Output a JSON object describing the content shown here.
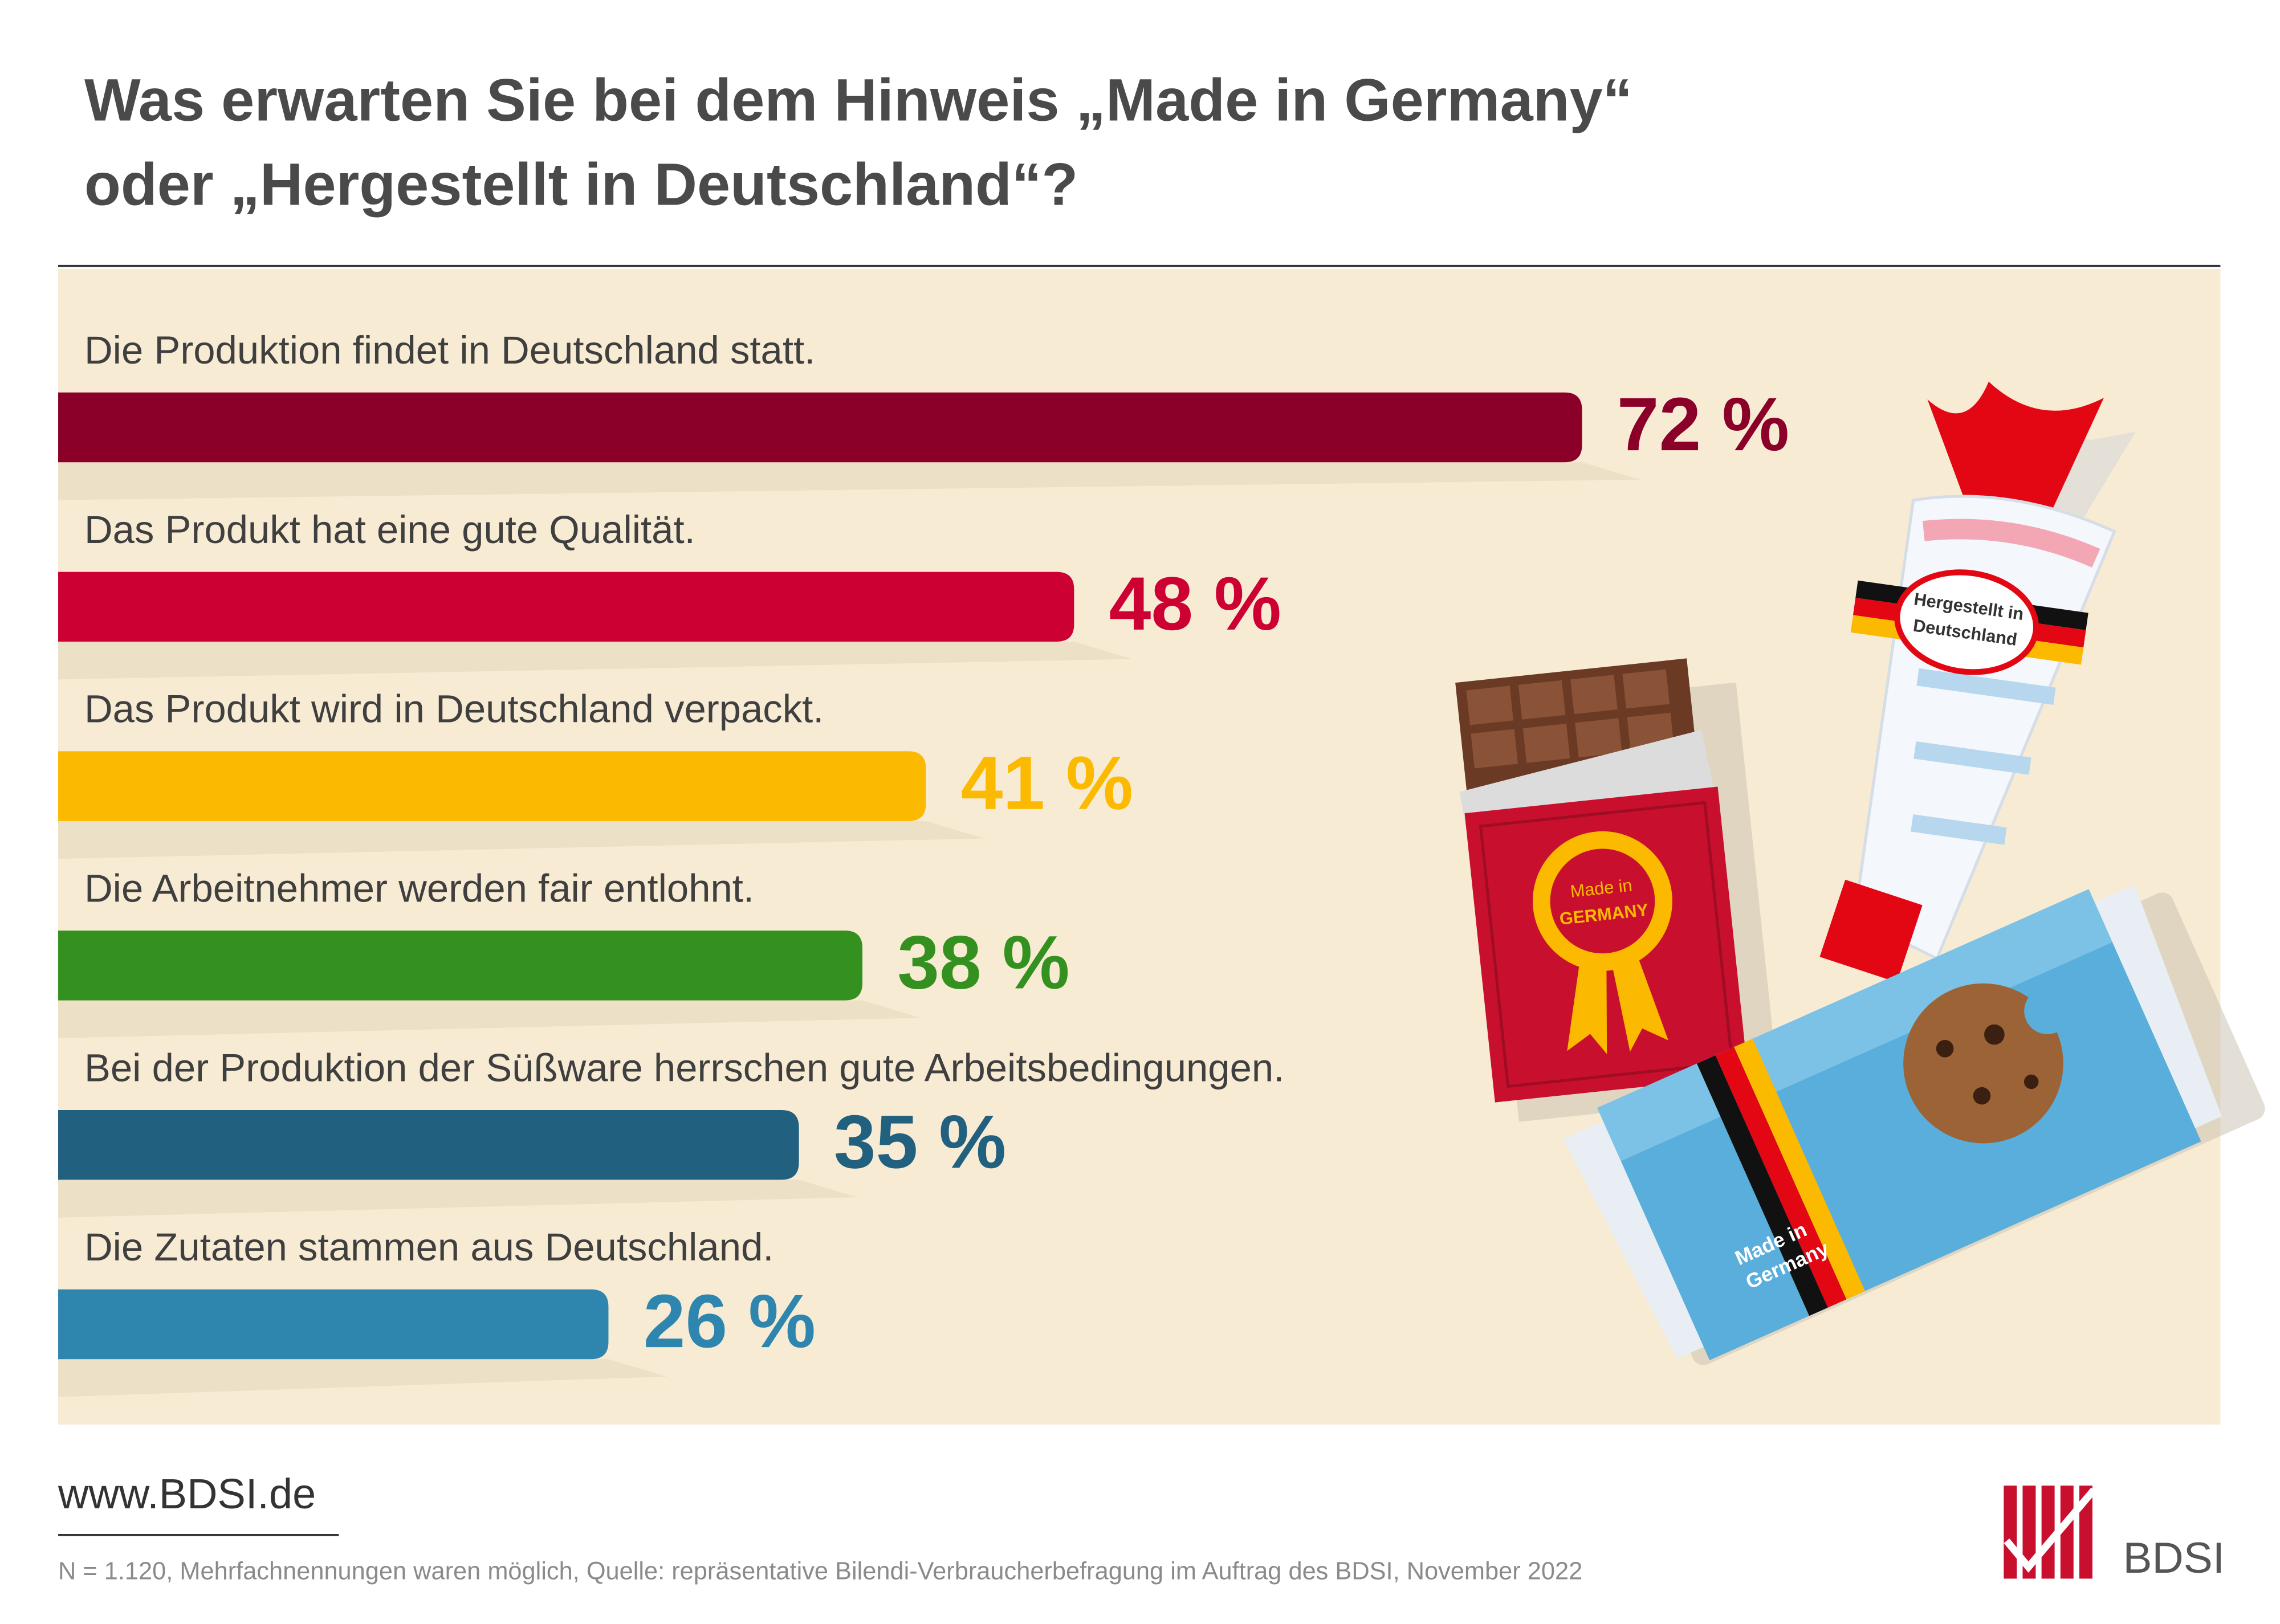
{
  "chart_data": {
    "type": "bar",
    "orientation": "horizontal",
    "title": [
      "Was erwarten Sie bei dem Hinweis „Made in Germany“",
      "oder „Hergestellt in Deutschland“?"
    ],
    "categories": [
      "Die Produktion findet in Deutschland statt.",
      "Das Produkt hat eine gute Qualität.",
      "Das Produkt wird in Deutschland verpackt.",
      "Die Arbeitnehmer werden fair entlohnt.",
      "Bei der Produktion der Süßware herrschen gute Arbeitsbedingungen.",
      "Die Zutaten stammen aus Deutschland."
    ],
    "values": [
      72,
      48,
      41,
      38,
      35,
      26
    ],
    "value_labels": [
      "72 %",
      "48 %",
      "41 %",
      "38 %",
      "35 %",
      "26 %"
    ],
    "colors": [
      "#8b0029",
      "#cc0033",
      "#fbb900",
      "#349120",
      "#22607f",
      "#2e86ae"
    ]
  },
  "footer": {
    "website": "www.BDSI.de",
    "note": "N = 1.120, Mehrfachnennungen waren möglich, Quelle: repräsentative Bilendi-Verbraucherbefragung im Auftrag des BDSI, November 2022",
    "logo_text": "BDSI"
  },
  "illustration": {
    "badge": [
      "Made in",
      "GERMANY"
    ],
    "bag_label": [
      "Hergestellt in",
      "Deutschland"
    ],
    "pack_label": [
      "Made in",
      "Germany"
    ]
  }
}
